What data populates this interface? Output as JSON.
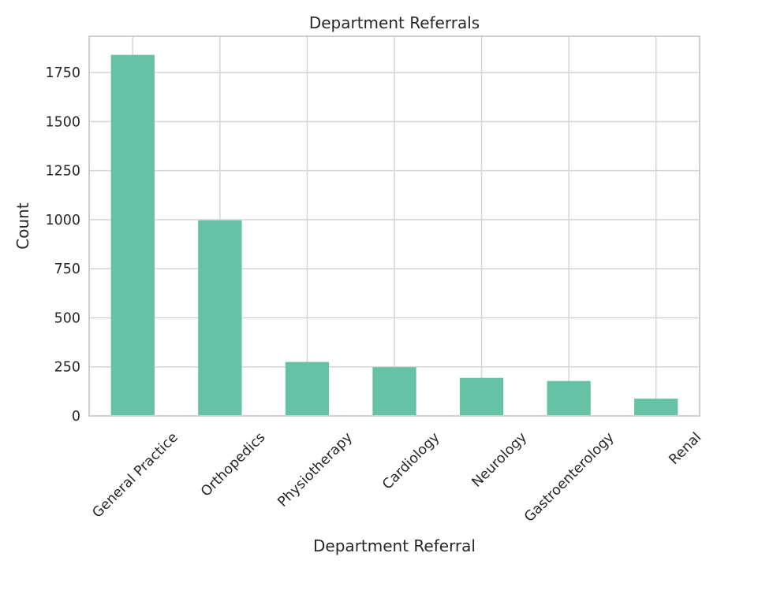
{
  "colors": {
    "bar": "#66c2a5",
    "grid": "#d5d5d5",
    "frame": "#cfcfcf",
    "text": "#262626",
    "background": "#ffffff"
  },
  "chart_data": {
    "type": "bar",
    "title": "Department Referrals",
    "xlabel": "Department Referral",
    "ylabel": "Count",
    "categories": [
      "General Practice",
      "Orthopedics",
      "Physiotherapy",
      "Cardiology",
      "Neurology",
      "Gastroenterology",
      "Renal"
    ],
    "values": [
      1840,
      997,
      275,
      248,
      194,
      178,
      88
    ],
    "ylim": [
      0,
      1935
    ],
    "yticks": [
      0,
      250,
      500,
      750,
      1000,
      1250,
      1500,
      1750
    ],
    "grid": true,
    "legend": "none"
  }
}
